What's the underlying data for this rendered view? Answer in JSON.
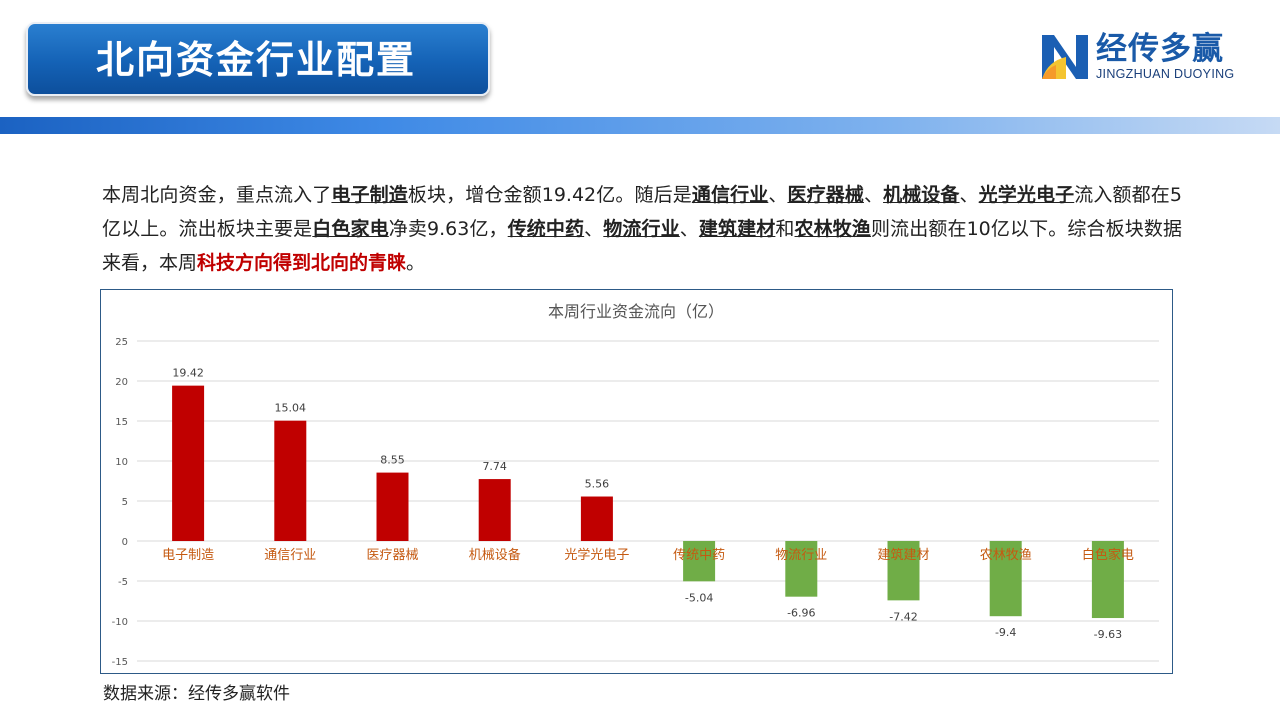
{
  "header": {
    "title": "北向资金行业配置",
    "logo_name": "经传多赢",
    "logo_subtitle": "JINGZHUAN DUOYING"
  },
  "summary": {
    "p1": "本周北向资金，重点流入了",
    "s1": "电子制造",
    "p2": "板块，增仓金额19.42亿。随后是",
    "s2": "通信行业",
    "sep1": "、",
    "s3": "医疗器械",
    "sep2": "、",
    "s4": "机械设备",
    "sep3": "、",
    "s5": "光学光电子",
    "p3": "流入额都在5亿以上。流出板块主要是",
    "s6": "白色家电",
    "p4": "净卖9.63亿，",
    "s7": "传统中药",
    "sep4": "、",
    "s8": "物流行业",
    "sep5": "、",
    "s9": "建筑建材",
    "p5": "和",
    "s10": "农林牧渔",
    "p6": "则流出额在10亿以下。综合板块数据来看，本周",
    "highlight": "科技方向得到北向的青睐",
    "p7": "。"
  },
  "chart_data": {
    "type": "bar",
    "title": "本周行业资金流向（亿）",
    "categories": [
      "电子制造",
      "通信行业",
      "医疗器械",
      "机械设备",
      "光学光电子",
      "传统中药",
      "物流行业",
      "建筑建材",
      "农林牧渔",
      "白色家电"
    ],
    "values": [
      19.42,
      15.04,
      8.55,
      7.74,
      5.56,
      -5.04,
      -6.96,
      -7.42,
      -9.4,
      -9.63
    ],
    "value_labels": [
      "19.42",
      "15.04",
      "8.55",
      "7.74",
      "5.56",
      "-5.04",
      "-6.96",
      "-7.42",
      "-9.4",
      "-9.63"
    ],
    "ylim": [
      -15,
      25
    ],
    "yticks": [
      25,
      20,
      15,
      10,
      5,
      0,
      -5,
      -10,
      -15
    ],
    "grid": true,
    "colors": {
      "positive": "#c00000",
      "negative": "#70ad47",
      "category_label": "#c55a11"
    }
  },
  "footer": {
    "source": "数据来源：经传多赢软件"
  }
}
